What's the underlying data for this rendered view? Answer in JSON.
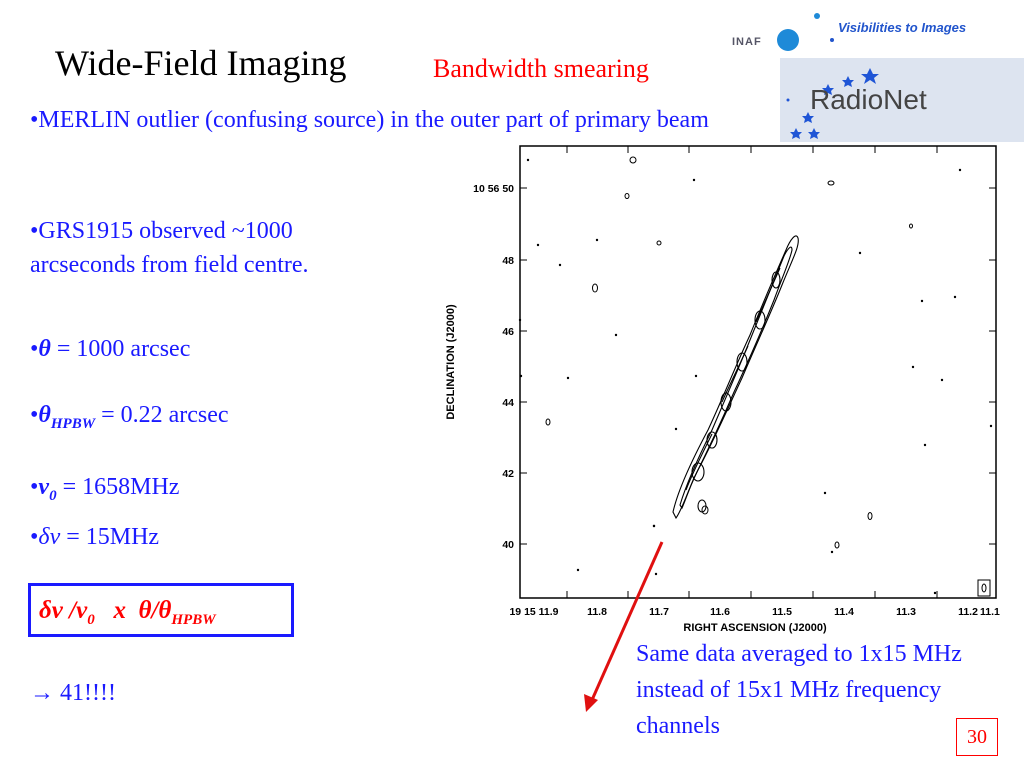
{
  "slide": {
    "title": "Wide-Field Imaging",
    "subtitle": "Bandwidth smearing",
    "bullet1": "•MERLIN outlier (confusing source) in the outer part of primary beam",
    "bullet2": "•GRS1915 observed ~1000 arcseconds from field centre.",
    "theta_sym": "θ",
    "theta_val": " = 1000 arcsec",
    "hpbw_sym": "θ",
    "hpbw_sub": "HPBW",
    "hpbw_val": " = 0.22 arcsec",
    "nu0_sym": "ν",
    "nu0_sub": "0",
    "nu0_val": " = 1658MHz",
    "dnu_sym": "δν",
    "dnu_val": " = 15MHz",
    "formula_a": "δν /ν",
    "formula_a_sub": "0",
    "formula_b": "   x  θ/θ",
    "formula_b_sub": "HPBW",
    "result": "→ 41!!!!",
    "caption": "Same data averaged to 1x15 MHz instead of 15x1 MHz frequency channels",
    "page_number": "30"
  },
  "logo": {
    "tagline": "Visibilities to Images",
    "inaf": "INAF",
    "radionet": "RadioNet"
  },
  "plot": {
    "ylabel": "DECLINATION (J2000)",
    "xlabel": "RIGHT ASCENSION (J2000)",
    "ytick_top": "10 56 50",
    "yticks": [
      "48",
      "46",
      "44",
      "42",
      "40"
    ],
    "xtick_first": "19 15 11.9",
    "xticks": [
      "11.8",
      "11.7",
      "11.6",
      "11.5",
      "11.4",
      "11.3",
      "11.2",
      "11.1"
    ]
  },
  "colors": {
    "blue_text": "#1a1aff",
    "red_text": "#ff0000"
  }
}
